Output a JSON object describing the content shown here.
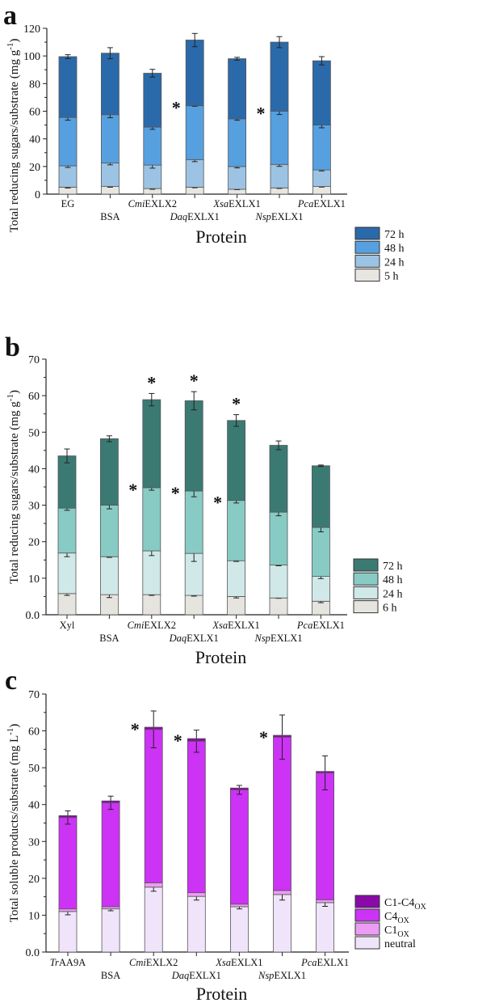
{
  "chart_data": [
    {
      "panel_letter": "a",
      "type": "bar",
      "stacked": true,
      "ylabel": "Total reducing sugars/substrate (mg g",
      "ylabel_sup": "-1",
      "ylabel_close": ")",
      "xlabel": "Protein",
      "ylim": [
        0,
        120
      ],
      "yticks": [
        "0",
        "20",
        "40",
        "60",
        "80",
        "100",
        "120"
      ],
      "yticks_values": [
        0,
        20,
        40,
        60,
        80,
        100,
        120
      ],
      "categories": [
        {
          "italic": "",
          "rest": "EG"
        },
        {
          "italic": "",
          "rest": "BSA"
        },
        {
          "italic": "Cmi",
          "rest": "EXLX2"
        },
        {
          "italic": "Daq",
          "rest": "EXLX1"
        },
        {
          "italic": "Xsa",
          "rest": "EXLX1"
        },
        {
          "italic": "Nsp",
          "rest": "EXLX1"
        },
        {
          "italic": "Pca",
          "rest": "EXLX1"
        }
      ],
      "legend_placement": "bottom-right",
      "series": [
        {
          "name": "5 h",
          "color": "#e8e6e0",
          "values": [
            5,
            5.5,
            4,
            5,
            3.5,
            4.5,
            5.5
          ],
          "errors": [
            0.6,
            0.5,
            0.5,
            0.4,
            0.3,
            0.4,
            0.4
          ]
        },
        {
          "name": "24 h",
          "color": "#9cc3e3",
          "values": [
            15.5,
            17,
            17,
            20,
            16.5,
            17,
            12
          ],
          "errors": [
            1.2,
            1.3,
            2.2,
            1.5,
            1,
            1.4,
            0.7
          ]
        },
        {
          "name": "48 h",
          "color": "#56a0e0",
          "values": [
            35,
            35,
            27.5,
            39,
            34.5,
            38.5,
            32.5
          ],
          "errors": [
            2,
            2.2,
            1.6,
            0.4,
            1,
            2.4,
            2
          ]
        },
        {
          "name": "72 h",
          "color": "#2b6aaa",
          "values": [
            44,
            44.5,
            39,
            47.5,
            43.5,
            50,
            46.5
          ],
          "errors": [
            1.4,
            4,
            2.8,
            4.8,
            1,
            4,
            3
          ]
        }
      ],
      "significance": [
        {
          "category": 3,
          "series": "48 h",
          "label": "*"
        },
        {
          "category": 5,
          "series": "48 h",
          "label": "*"
        }
      ]
    },
    {
      "panel_letter": "b",
      "type": "bar",
      "stacked": true,
      "ylabel": "Total reducing sugars/substrate (mg g",
      "ylabel_sup": "-1",
      "ylabel_close": ")",
      "xlabel": "Protein",
      "ylim": [
        0,
        70
      ],
      "yticks": [
        "0.0",
        "10",
        "20",
        "30",
        "40",
        "50",
        "60",
        "70"
      ],
      "yticks_values": [
        0,
        10,
        20,
        30,
        40,
        50,
        60,
        70
      ],
      "categories": [
        {
          "italic": "",
          "rest": "Xyl"
        },
        {
          "italic": "",
          "rest": "BSA"
        },
        {
          "italic": "Cmi",
          "rest": "EXLX2"
        },
        {
          "italic": "Daq",
          "rest": "EXLX1"
        },
        {
          "italic": "Xsa",
          "rest": "EXLX1"
        },
        {
          "italic": "Nsp",
          "rest": "EXLX1"
        },
        {
          "italic": "Pca",
          "rest": "EXLX1"
        }
      ],
      "legend_placement": "bottom-right",
      "series": [
        {
          "name": "6 h",
          "color": "#e6e4df",
          "values": [
            5.8,
            5.5,
            5.5,
            5.3,
            5,
            4.6,
            3.7
          ],
          "errors": [
            0.5,
            0.8,
            0.2,
            0.2,
            0.4,
            0.1,
            0.4
          ]
        },
        {
          "name": "24 h",
          "color": "#d0e8e8",
          "values": [
            11.1,
            10.4,
            12,
            11.5,
            9.8,
            9,
            6.8
          ],
          "errors": [
            1,
            0.2,
            1.3,
            2.2,
            0.2,
            0.2,
            0.6
          ]
        },
        {
          "name": "48 h",
          "color": "#88cbc5",
          "values": [
            12.3,
            14.1,
            17.3,
            17.1,
            16.5,
            14.5,
            13.4
          ],
          "errors": [
            0.6,
            1,
            0.7,
            1.6,
            0.7,
            1,
            1.2
          ]
        },
        {
          "name": "72 h",
          "color": "#3b7a73",
          "values": [
            14.3,
            18.2,
            24.1,
            24.7,
            21.9,
            18.3,
            16.9
          ],
          "errors": [
            1.9,
            0.8,
            1.7,
            2.5,
            1.6,
            1.2,
            0.2
          ]
        }
      ],
      "significance": [
        {
          "category": 2,
          "series": "72 h",
          "label": "*"
        },
        {
          "category": 3,
          "series": "72 h",
          "label": "*"
        },
        {
          "category": 4,
          "series": "72 h",
          "label": "*"
        },
        {
          "category": 2,
          "series": "48 h",
          "label": "*"
        },
        {
          "category": 3,
          "series": "48 h",
          "label": "*"
        },
        {
          "category": 4,
          "series": "48 h",
          "label": "*"
        }
      ]
    },
    {
      "panel_letter": "c",
      "type": "bar",
      "stacked": true,
      "ylabel": "Total soluble products/substrate (mg L",
      "ylabel_sup": "-1",
      "ylabel_close": ")",
      "xlabel": "Protein",
      "ylim": [
        0,
        70
      ],
      "yticks": [
        "0.0",
        "10",
        "20",
        "30",
        "40",
        "50",
        "60",
        "70"
      ],
      "yticks_values": [
        0,
        10,
        20,
        30,
        40,
        50,
        60,
        70
      ],
      "categories": [
        {
          "italic": "Tr",
          "rest": "AA9A"
        },
        {
          "italic": "",
          "rest": "BSA"
        },
        {
          "italic": "Cmi",
          "rest": "EXLX2"
        },
        {
          "italic": "Daq",
          "rest": "EXLX1"
        },
        {
          "italic": "Xsa",
          "rest": "EXLX1"
        },
        {
          "italic": "Nsp",
          "rest": "EXLX1"
        },
        {
          "italic": "Pca",
          "rest": "EXLX1"
        }
      ],
      "legend_placement": "bottom-right",
      "series": [
        {
          "name": "neutral",
          "name_sub": "",
          "color": "#f0e4fa",
          "values": [
            11,
            11.7,
            17.6,
            15.1,
            12.3,
            15.6,
            13.4
          ],
          "errors": [
            0.9,
            0.5,
            1.1,
            1,
            0.6,
            1.5,
            1
          ]
        },
        {
          "name": "C1",
          "name_sub": "OX",
          "color": "#ec9cf5",
          "values": [
            0.7,
            0.6,
            1.2,
            1,
            0.7,
            1.1,
            0.8
          ],
          "errors": [
            0,
            0,
            0,
            0,
            0,
            0,
            0
          ]
        },
        {
          "name": "C4",
          "name_sub": "OX",
          "color": "#cc33f5",
          "values": [
            24.8,
            28.2,
            41.6,
            41.1,
            31,
            41.6,
            34.4
          ],
          "errors": [
            1.8,
            1.8,
            5,
            3,
            1.2,
            6,
            4.6
          ]
        },
        {
          "name": "C1-C4",
          "name_sub": "OX",
          "color": "#8a0aa8",
          "values": [
            0.5,
            0.5,
            0.6,
            0.7,
            0.5,
            0.5,
            0.4
          ],
          "errors": [
            0,
            0,
            0,
            0,
            0,
            0,
            0
          ]
        }
      ],
      "significance": [
        {
          "category": 2,
          "series": "C1-C4",
          "label": "*"
        },
        {
          "category": 3,
          "series": "C1-C4",
          "label": "*"
        },
        {
          "category": 5,
          "series": "C1-C4",
          "label": "*"
        }
      ]
    }
  ]
}
